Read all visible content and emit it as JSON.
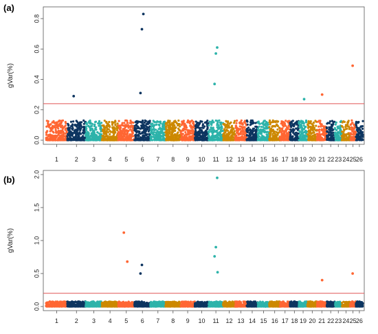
{
  "colors": {
    "orange": "#ff6633",
    "navy": "#0d3560",
    "teal": "#2db3aa",
    "gold": "#cc8800",
    "threshold": "#e05555"
  },
  "chart_data": [
    {
      "type": "scatter",
      "panel_label": "(a)",
      "ylabel": "gVar(%)",
      "ylim": [
        0,
        0.85
      ],
      "yticks": [
        0.0,
        0.2,
        0.4,
        0.6,
        0.8
      ],
      "ytick_labels": [
        "0.0",
        "0.2",
        "0.4",
        "0.6",
        "0.8"
      ],
      "threshold": 0.24,
      "chromosomes": [
        "1",
        "2",
        "3",
        "4",
        "5",
        "6",
        "7",
        "8",
        "9",
        "10",
        "11",
        "12",
        "13",
        "14",
        "15",
        "16",
        "17",
        "18",
        "19",
        "20",
        "21",
        "22",
        "23",
        "24",
        "25",
        "26"
      ],
      "notable_points": [
        {
          "chrom": "2",
          "value": 0.29
        },
        {
          "chrom": "6",
          "value": 0.83
        },
        {
          "chrom": "6",
          "value": 0.73
        },
        {
          "chrom": "6",
          "value": 0.31
        },
        {
          "chrom": "11",
          "value": 0.61
        },
        {
          "chrom": "11",
          "value": 0.57
        },
        {
          "chrom": "11",
          "value": 0.37
        },
        {
          "chrom": "19",
          "value": 0.27
        },
        {
          "chrom": "21",
          "value": 0.3
        },
        {
          "chrom": "25",
          "value": 0.49
        }
      ]
    },
    {
      "type": "scatter",
      "panel_label": "(b)",
      "ylabel": "gVar(%)",
      "ylim": [
        0,
        2.0
      ],
      "yticks": [
        0.0,
        0.5,
        1.0,
        1.5,
        2.0
      ],
      "ytick_labels": [
        "0.0",
        "0.5",
        "1.0",
        "1.5",
        "2.0"
      ],
      "threshold": 0.2,
      "chromosomes": [
        "1",
        "2",
        "3",
        "4",
        "5",
        "6",
        "7",
        "8",
        "9",
        "10",
        "11",
        "12",
        "13",
        "14",
        "15",
        "16",
        "17",
        "18",
        "19",
        "20",
        "21",
        "22",
        "23",
        "24",
        "25",
        "26"
      ],
      "notable_points": [
        {
          "chrom": "5",
          "value": 1.12
        },
        {
          "chrom": "5",
          "value": 0.68
        },
        {
          "chrom": "6",
          "value": 0.63
        },
        {
          "chrom": "6",
          "value": 0.5
        },
        {
          "chrom": "11",
          "value": 1.95
        },
        {
          "chrom": "11",
          "value": 0.9
        },
        {
          "chrom": "11",
          "value": 0.76
        },
        {
          "chrom": "11",
          "value": 0.52
        },
        {
          "chrom": "21",
          "value": 0.4
        },
        {
          "chrom": "25",
          "value": 0.5
        }
      ]
    }
  ]
}
